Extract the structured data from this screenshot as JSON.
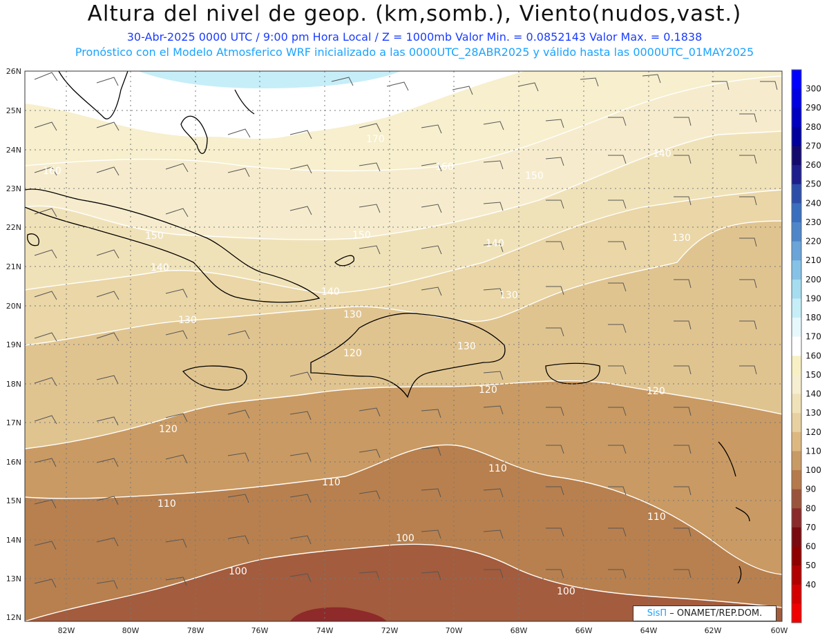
{
  "header": {
    "title": "Altura del nivel de geop. (km,somb.), Viento(nudos,vast.)",
    "line1": "30-Abr-2025  0000 UTC / 9:00 pm Hora Local / Z = 1000mb   Valor Min. = 0.0852143  Valor Max. = 0.1838",
    "line2": "Pronóstico con el Modelo Atmosferico WRF inicializado a las 0000UTC_28ABR2025 y válido hasta las  0000UTC_01MAY2025"
  },
  "axes": {
    "lat_labels": [
      "26N",
      "25N",
      "24N",
      "23N",
      "22N",
      "21N",
      "20N",
      "19N",
      "18N",
      "17N",
      "16N",
      "15N",
      "14N",
      "13N",
      "12N"
    ],
    "lon_labels": [
      "82W",
      "80W",
      "78W",
      "76W",
      "74W",
      "72W",
      "70W",
      "68W",
      "66W",
      "64W",
      "62W",
      "60W"
    ]
  },
  "contour_labels": [
    {
      "text": "170"
    },
    {
      "text": "160"
    },
    {
      "text": "160"
    },
    {
      "text": "150"
    },
    {
      "text": "150"
    },
    {
      "text": "150"
    },
    {
      "text": "140"
    },
    {
      "text": "140"
    },
    {
      "text": "140"
    },
    {
      "text": "140"
    },
    {
      "text": "130"
    },
    {
      "text": "130"
    },
    {
      "text": "130"
    },
    {
      "text": "130"
    },
    {
      "text": "130"
    },
    {
      "text": "120"
    },
    {
      "text": "120"
    },
    {
      "text": "120"
    },
    {
      "text": "120"
    },
    {
      "text": "110"
    },
    {
      "text": "110"
    },
    {
      "text": "110"
    },
    {
      "text": "110"
    },
    {
      "text": "100"
    },
    {
      "text": "100"
    },
    {
      "text": "100"
    }
  ],
  "colorbar": {
    "labels": [
      "300",
      "290",
      "280",
      "270",
      "260",
      "250",
      "240",
      "230",
      "220",
      "210",
      "200",
      "190",
      "180",
      "170",
      "160",
      "150",
      "140",
      "130",
      "120",
      "110",
      "100",
      "90",
      "80",
      "70",
      "60",
      "50",
      "40"
    ],
    "colors": [
      "#0000ff",
      "#0000e0",
      "#0000c0",
      "#00009c",
      "#140a6e",
      "#1e1e8c",
      "#2d4ea8",
      "#3a6fbf",
      "#4e86c9",
      "#6aa4d8",
      "#86c2e6",
      "#a6dcf0",
      "#c6eef8",
      "#e6f8fc",
      "#ffffff",
      "#f8f0c4",
      "#f6eed0",
      "#f0e2b8",
      "#e8d0a0",
      "#dcb880",
      "#c89a64",
      "#b47a4c",
      "#9a543c",
      "#8a2a2a",
      "#780a10",
      "#8e0000",
      "#b00000",
      "#d40000",
      "#f00000"
    ]
  },
  "credit": {
    "brand": "SisΠ",
    "text": "– ONAMET/REP.DOM."
  }
}
